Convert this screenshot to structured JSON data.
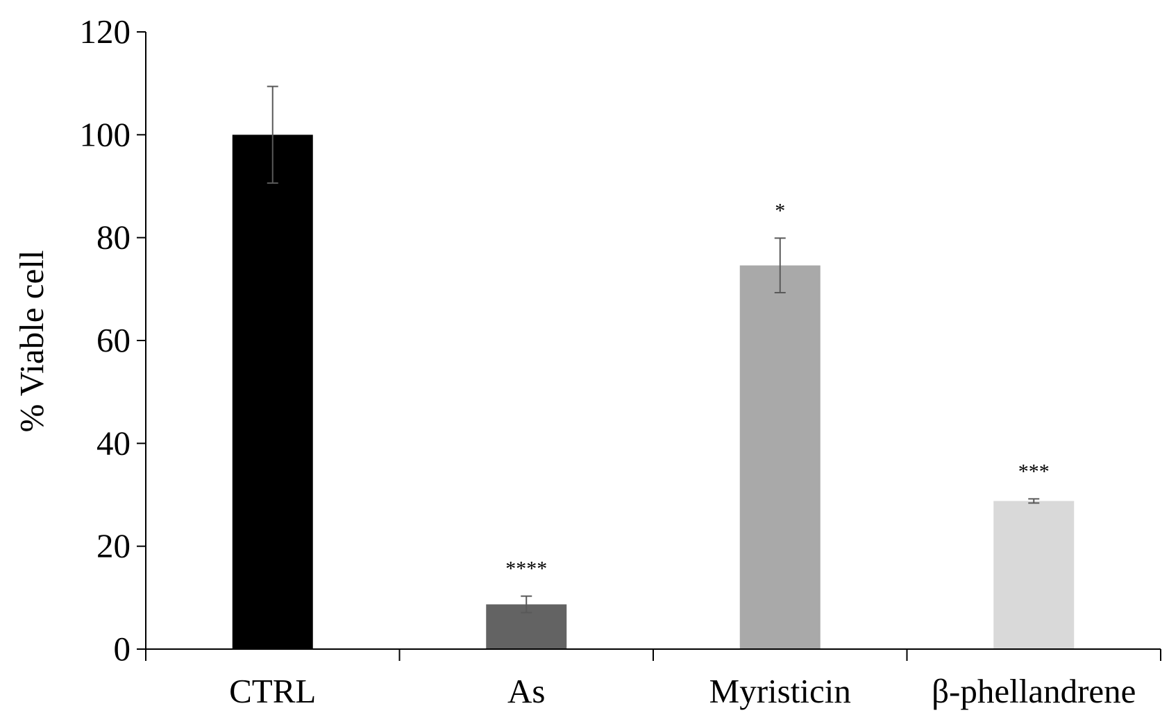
{
  "chart_data": {
    "type": "bar",
    "title": "",
    "xlabel": "",
    "ylabel": "% Viable cell",
    "ylim": [
      0,
      120
    ],
    "yticks": [
      0,
      20,
      40,
      60,
      80,
      100,
      120
    ],
    "grid": false,
    "legend": "none",
    "categories": [
      "CTRL",
      "As",
      "Myristicin",
      "β-phellandrene"
    ],
    "values": [
      100,
      8.7,
      74.6,
      28.8
    ],
    "errors": [
      9.4,
      1.6,
      5.3,
      0.4
    ],
    "significance": [
      "",
      "****",
      "*",
      "***"
    ],
    "colors": [
      "#000000",
      "#636363",
      "#a9a9a9",
      "#d9d9d9"
    ],
    "error_color": "#595959",
    "axis_color": "#000000"
  }
}
